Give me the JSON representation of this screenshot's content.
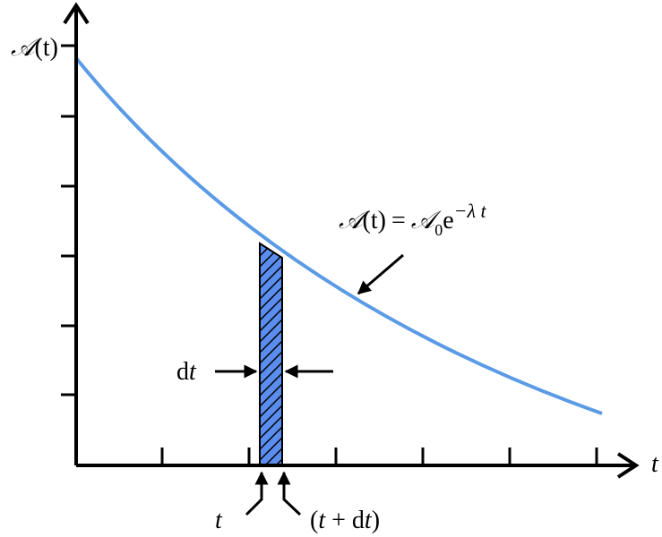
{
  "axes": {
    "y_label": {
      "name": "𝒜",
      "arg": "(t)"
    },
    "x_label": "t"
  },
  "curve_label": {
    "lhs_name": "𝒜",
    "lhs_arg": "(t)",
    "equals": "=",
    "rhs_name": "𝒜",
    "rhs_sub": "0",
    "rhs_base": "e",
    "rhs_exp": "−λ t"
  },
  "strip_label": {
    "d": "d",
    "t": "t"
  },
  "bottom_labels": {
    "left": "t",
    "right_open": "(",
    "right_t": "t",
    "right_plus": " + d",
    "right_t2": "t",
    "right_close": ")"
  }
}
